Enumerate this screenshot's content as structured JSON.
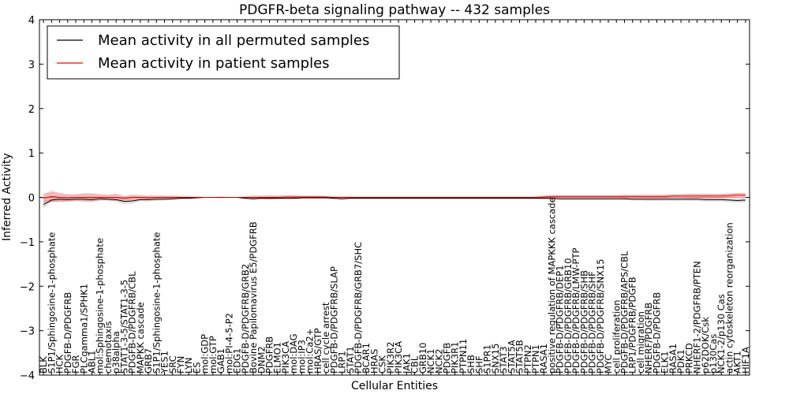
{
  "chart_data": {
    "type": "line",
    "title": "PDGFR-beta signaling pathway -- 432 samples",
    "xlabel": "Cellular Entities",
    "ylabel": "Inferred Activity",
    "ylim": [
      -4,
      4
    ],
    "yticks": [
      "4",
      "3",
      "2",
      "1",
      "0",
      "−1",
      "−2",
      "−3",
      "−4"
    ],
    "ytick_values": [
      4,
      3,
      2,
      1,
      0,
      -1,
      -2,
      -3,
      -4
    ],
    "grid": false,
    "legend_position": "top-left",
    "colors": {
      "permuted": "#000000",
      "patient": "#ff0000",
      "patient_band": "#f4a3a3",
      "permuted_band": "#c0c0c0"
    },
    "categories": [
      "BLK",
      "S1P1/Sphingosine-1-phosphate",
      "HCK",
      "PDGFB-D/PDGFRB",
      "FGR",
      "PLCgamma1/SPHK1",
      "ABL1",
      "mol:Sphingosine-1-phosphate",
      "chemotaxis",
      "p38alpha",
      "STAT1-3-5/STAT1-3-5",
      "PDGFB-D/PDGFRB/CBL",
      "MAPKK cascade",
      "GRB7",
      "S1P1/Sphingosine-1-phosphate",
      "YES1",
      "SRC",
      "FYN",
      "LYN",
      "ES",
      "mol:GDP",
      "mol:GTP",
      "GAB1",
      "mol:PI-4-5-P2",
      "EDG1",
      "PDGFB-D/PDGFRB/GRB2",
      "Bovine Papilomavirus E5/PDGFRB",
      "DNM2",
      "PDGFRB",
      "ELMO1",
      "PIK3CA",
      "mol:DAG",
      "mol:IP3",
      "mol:Ca2+",
      "HRAS/GTP",
      "cell cycle arrest",
      "PDGFB-D/PDGFRB/SLAP",
      "LRP1",
      "STAT1",
      "PDGFB-D/PDGFRB/GRB7/SHC",
      "BCAR1",
      "HRAS",
      "CSK",
      "PIK3R2",
      "PIK3CA",
      "JAK1",
      "CBL",
      "GRB10",
      "NCK1",
      "NCK2",
      "PDGFB",
      "PIK3R1",
      "PTPN11",
      "SHB",
      "SHF",
      "S1PR1",
      "SNX15",
      "STAT3",
      "STAT5A",
      "STAT5B",
      "PTPN2",
      "PTPN1",
      "RASA1",
      "positive regulation of MAPKKK cascade",
      "PDGFB-D/PDGFRB/DEP1",
      "PDGFB-D/PDGFRB/GRB10",
      "PDGFB-D/PDGFRB/LMW-PTP",
      "PDGFB-D/PDGFRB/SHB",
      "PDGFB-D/PDGFRB/SHF",
      "PDGFB-D/PDGFRB/SNX15",
      "MYC",
      "cell proliferation",
      "PDGFB-D/PDGFRB/APS/CBL",
      "LRP1/PDGFRB/PDGFB",
      "cell migration",
      "NHERF/PDGFRB",
      "PDGFB-D/PDGFRB",
      "ELK1",
      "RASA1",
      "PDK1",
      "PRKCD",
      "NHERF1-2/PDGFRB/PTEN",
      "p62DOK/Csk",
      "p130Cas",
      "NCK1-2/p130 Cas",
      "actin cytoskeleton reorganization",
      "AKT1",
      "HIF1A"
    ],
    "series": [
      {
        "name": "Mean activity in all permuted samples",
        "values": [
          -0.16,
          -0.06,
          -0.04,
          -0.05,
          -0.04,
          -0.04,
          -0.05,
          -0.03,
          -0.04,
          -0.05,
          -0.09,
          -0.08,
          -0.05,
          -0.05,
          -0.04,
          -0.04,
          -0.03,
          -0.02,
          -0.02,
          -0.01,
          0.0,
          0.0,
          0.0,
          0.0,
          0.0,
          -0.02,
          -0.03,
          -0.02,
          -0.02,
          -0.02,
          -0.02,
          -0.02,
          -0.01,
          -0.01,
          -0.01,
          -0.01,
          -0.02,
          -0.03,
          -0.02,
          -0.02,
          -0.02,
          -0.02,
          -0.02,
          -0.02,
          -0.02,
          -0.02,
          -0.02,
          -0.02,
          -0.02,
          -0.02,
          -0.02,
          -0.02,
          -0.02,
          -0.02,
          -0.02,
          -0.02,
          -0.02,
          -0.02,
          -0.02,
          -0.02,
          -0.02,
          -0.02,
          -0.02,
          -0.02,
          -0.03,
          -0.03,
          -0.03,
          -0.03,
          -0.03,
          -0.03,
          -0.03,
          -0.03,
          -0.03,
          -0.04,
          -0.04,
          -0.04,
          -0.04,
          -0.04,
          -0.04,
          -0.04,
          -0.04,
          -0.04,
          -0.05,
          -0.05,
          -0.05,
          -0.06,
          -0.07,
          -0.06
        ]
      },
      {
        "name": "Mean activity in patient samples",
        "values": [
          -0.02,
          0.02,
          0.0,
          -0.01,
          0.0,
          0.0,
          0.0,
          0.0,
          0.0,
          0.0,
          -0.02,
          0.0,
          0.0,
          -0.01,
          0.0,
          0.0,
          0.0,
          0.0,
          0.0,
          0.0,
          0.0,
          0.0,
          0.0,
          0.0,
          0.0,
          0.0,
          0.0,
          0.0,
          0.0,
          0.0,
          0.01,
          0.01,
          0.01,
          0.01,
          0.01,
          0.01,
          0.0,
          0.0,
          0.0,
          0.0,
          0.0,
          0.0,
          0.0,
          0.0,
          0.0,
          0.0,
          0.0,
          0.0,
          0.0,
          0.0,
          0.0,
          0.0,
          0.0,
          0.0,
          0.0,
          0.0,
          0.0,
          0.0,
          0.0,
          0.0,
          0.0,
          0.0,
          0.01,
          0.02,
          0.02,
          0.02,
          0.02,
          0.02,
          0.02,
          0.02,
          0.02,
          0.02,
          0.02,
          0.02,
          0.02,
          0.02,
          0.02,
          0.02,
          0.03,
          0.03,
          0.03,
          0.03,
          0.03,
          0.03,
          0.03,
          0.04,
          0.05,
          0.05
        ]
      }
    ],
    "bands": {
      "patient_half_width": [
        0.1,
        0.12,
        0.1,
        0.08,
        0.07,
        0.09,
        0.09,
        0.07,
        0.06,
        0.08,
        0.05,
        0.06,
        0.05,
        0.05,
        0.04,
        0.04,
        0.04,
        0.03,
        0.02,
        0.02,
        0.01,
        0.01,
        0.02,
        0.01,
        0.01,
        0.02,
        0.04,
        0.04,
        0.05,
        0.04,
        0.04,
        0.04,
        0.03,
        0.03,
        0.03,
        0.02,
        0.02,
        0.02,
        0.02,
        0.02,
        0.02,
        0.02,
        0.02,
        0.02,
        0.02,
        0.02,
        0.02,
        0.02,
        0.02,
        0.02,
        0.02,
        0.02,
        0.02,
        0.02,
        0.02,
        0.02,
        0.02,
        0.02,
        0.02,
        0.02,
        0.02,
        0.02,
        0.03,
        0.03,
        0.03,
        0.03,
        0.03,
        0.03,
        0.03,
        0.03,
        0.03,
        0.03,
        0.04,
        0.04,
        0.04,
        0.04,
        0.04,
        0.04,
        0.04,
        0.04,
        0.05,
        0.05,
        0.05,
        0.05,
        0.05,
        0.05,
        0.05,
        0.05
      ],
      "permuted_half_width": [
        0.08,
        0.05,
        0.05,
        0.05,
        0.05,
        0.05,
        0.05,
        0.04,
        0.04,
        0.05,
        0.06,
        0.06,
        0.04,
        0.04,
        0.04,
        0.03,
        0.03,
        0.02,
        0.02,
        0.01,
        0.01,
        0.01,
        0.01,
        0.01,
        0.01,
        0.02,
        0.02,
        0.02,
        0.02,
        0.02,
        0.02,
        0.02,
        0.02,
        0.02,
        0.02,
        0.02,
        0.02,
        0.02,
        0.02,
        0.02,
        0.02,
        0.02,
        0.02,
        0.02,
        0.02,
        0.02,
        0.02,
        0.02,
        0.02,
        0.02,
        0.02,
        0.02,
        0.02,
        0.02,
        0.02,
        0.02,
        0.02,
        0.02,
        0.02,
        0.02,
        0.02,
        0.02,
        0.03,
        0.03,
        0.03,
        0.03,
        0.03,
        0.03,
        0.03,
        0.03,
        0.03,
        0.03,
        0.03,
        0.03,
        0.03,
        0.04,
        0.04,
        0.04,
        0.04,
        0.04,
        0.04,
        0.04,
        0.04,
        0.04,
        0.04,
        0.04,
        0.05,
        0.05
      ]
    }
  }
}
